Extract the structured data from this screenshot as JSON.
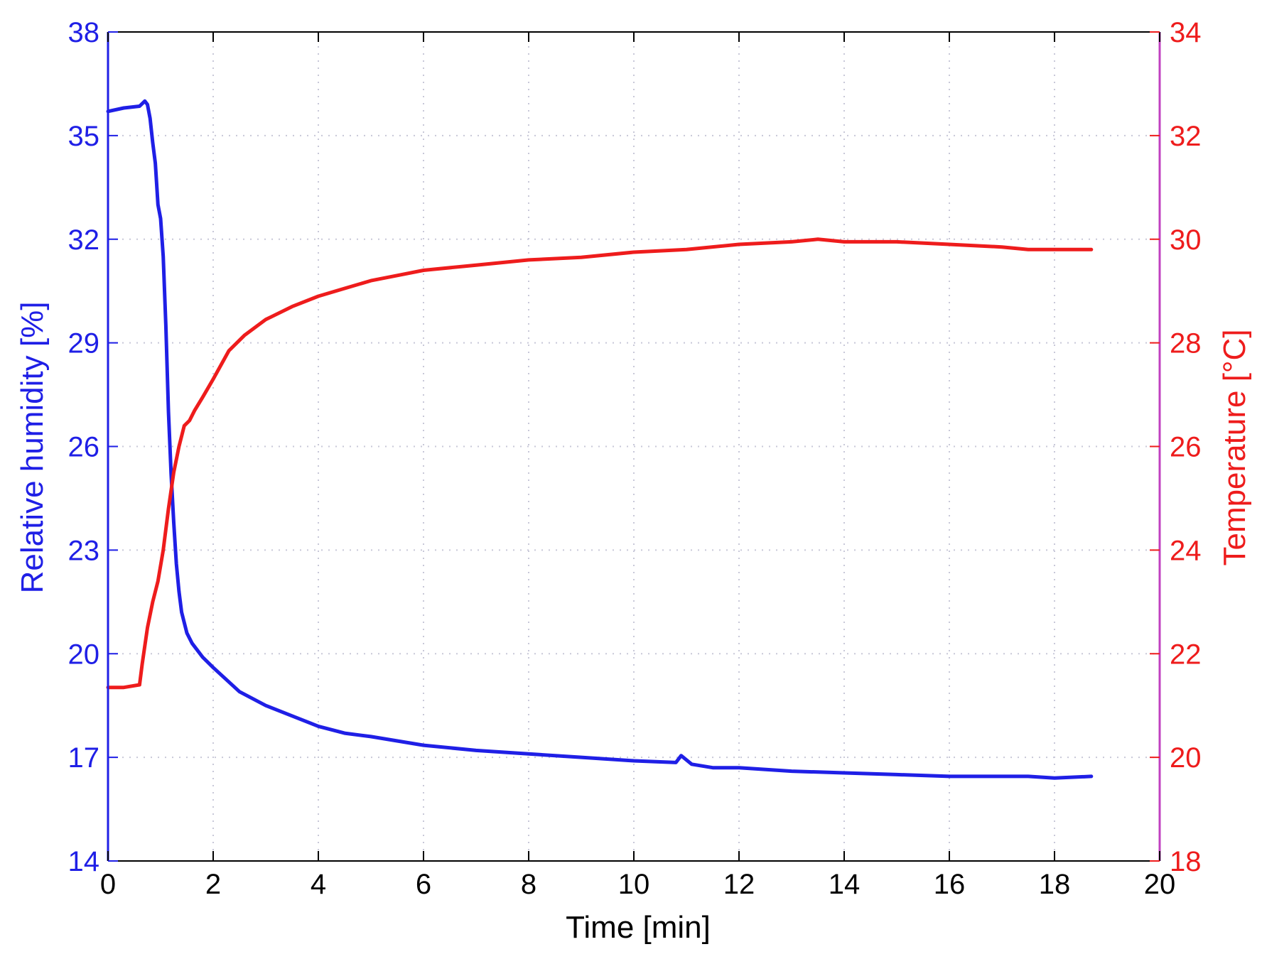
{
  "chart_data": {
    "type": "line",
    "title": "",
    "xlabel": "Time [min]",
    "ylabel_left": "Relative humidity [%]",
    "ylabel_right": "Temperature [°C]",
    "xlim": [
      0,
      20
    ],
    "ylim_left": [
      14,
      38
    ],
    "ylim_right": [
      18,
      34
    ],
    "x_ticks": [
      0,
      2,
      4,
      6,
      8,
      10,
      12,
      14,
      16,
      18,
      20
    ],
    "y_left_ticks": [
      14,
      17,
      20,
      23,
      26,
      29,
      32,
      35,
      38
    ],
    "y_right_ticks": [
      18,
      20,
      22,
      24,
      26,
      28,
      30,
      32,
      34
    ],
    "grid": true,
    "colors": {
      "humidity": "#1f1fe6",
      "temperature": "#ee1c1c",
      "right_axis": "#c040c0",
      "axis": "#000000",
      "grid": "#c8c8d8"
    },
    "series": [
      {
        "name": "Relative humidity [%]",
        "axis": "left",
        "x": [
          0,
          0.3,
          0.6,
          0.7,
          0.75,
          0.8,
          0.85,
          0.9,
          0.95,
          1.0,
          1.05,
          1.1,
          1.15,
          1.2,
          1.25,
          1.3,
          1.35,
          1.4,
          1.45,
          1.5,
          1.6,
          1.8,
          2.0,
          2.5,
          3.0,
          3.5,
          4.0,
          4.5,
          5.0,
          6.0,
          7.0,
          8.0,
          9.0,
          10.0,
          10.8,
          10.9,
          11.1,
          11.5,
          12.0,
          13.0,
          14.0,
          15.0,
          16.0,
          17.0,
          17.5,
          18.0,
          18.7
        ],
        "y": [
          35.7,
          35.8,
          35.85,
          36.0,
          35.9,
          35.5,
          34.8,
          34.2,
          33.0,
          32.6,
          31.5,
          29.5,
          27.0,
          25.2,
          23.8,
          22.6,
          21.8,
          21.2,
          20.9,
          20.6,
          20.3,
          19.9,
          19.6,
          18.9,
          18.5,
          18.2,
          17.9,
          17.7,
          17.6,
          17.35,
          17.2,
          17.1,
          17.0,
          16.9,
          16.85,
          17.05,
          16.8,
          16.7,
          16.7,
          16.6,
          16.55,
          16.5,
          16.45,
          16.45,
          16.45,
          16.4,
          16.45
        ]
      },
      {
        "name": "Temperature [°C]",
        "axis": "right",
        "x": [
          0,
          0.3,
          0.6,
          0.65,
          0.75,
          0.85,
          0.95,
          1.05,
          1.15,
          1.25,
          1.35,
          1.45,
          1.55,
          1.65,
          1.8,
          2.0,
          2.3,
          2.6,
          3.0,
          3.5,
          4.0,
          4.5,
          5.0,
          5.5,
          6.0,
          7.0,
          8.0,
          9.0,
          10.0,
          11.0,
          12.0,
          13.0,
          13.5,
          14.0,
          15.0,
          16.0,
          17.0,
          17.5,
          18.0,
          18.5,
          18.7
        ],
        "y": [
          21.35,
          21.35,
          21.4,
          21.8,
          22.5,
          23.0,
          23.4,
          24.0,
          24.8,
          25.5,
          26.0,
          26.4,
          26.5,
          26.7,
          26.95,
          27.3,
          27.85,
          28.15,
          28.45,
          28.7,
          28.9,
          29.05,
          29.2,
          29.3,
          29.4,
          29.5,
          29.6,
          29.65,
          29.75,
          29.8,
          29.9,
          29.95,
          30.0,
          29.95,
          29.95,
          29.9,
          29.85,
          29.8,
          29.8,
          29.8,
          29.8
        ]
      }
    ]
  }
}
